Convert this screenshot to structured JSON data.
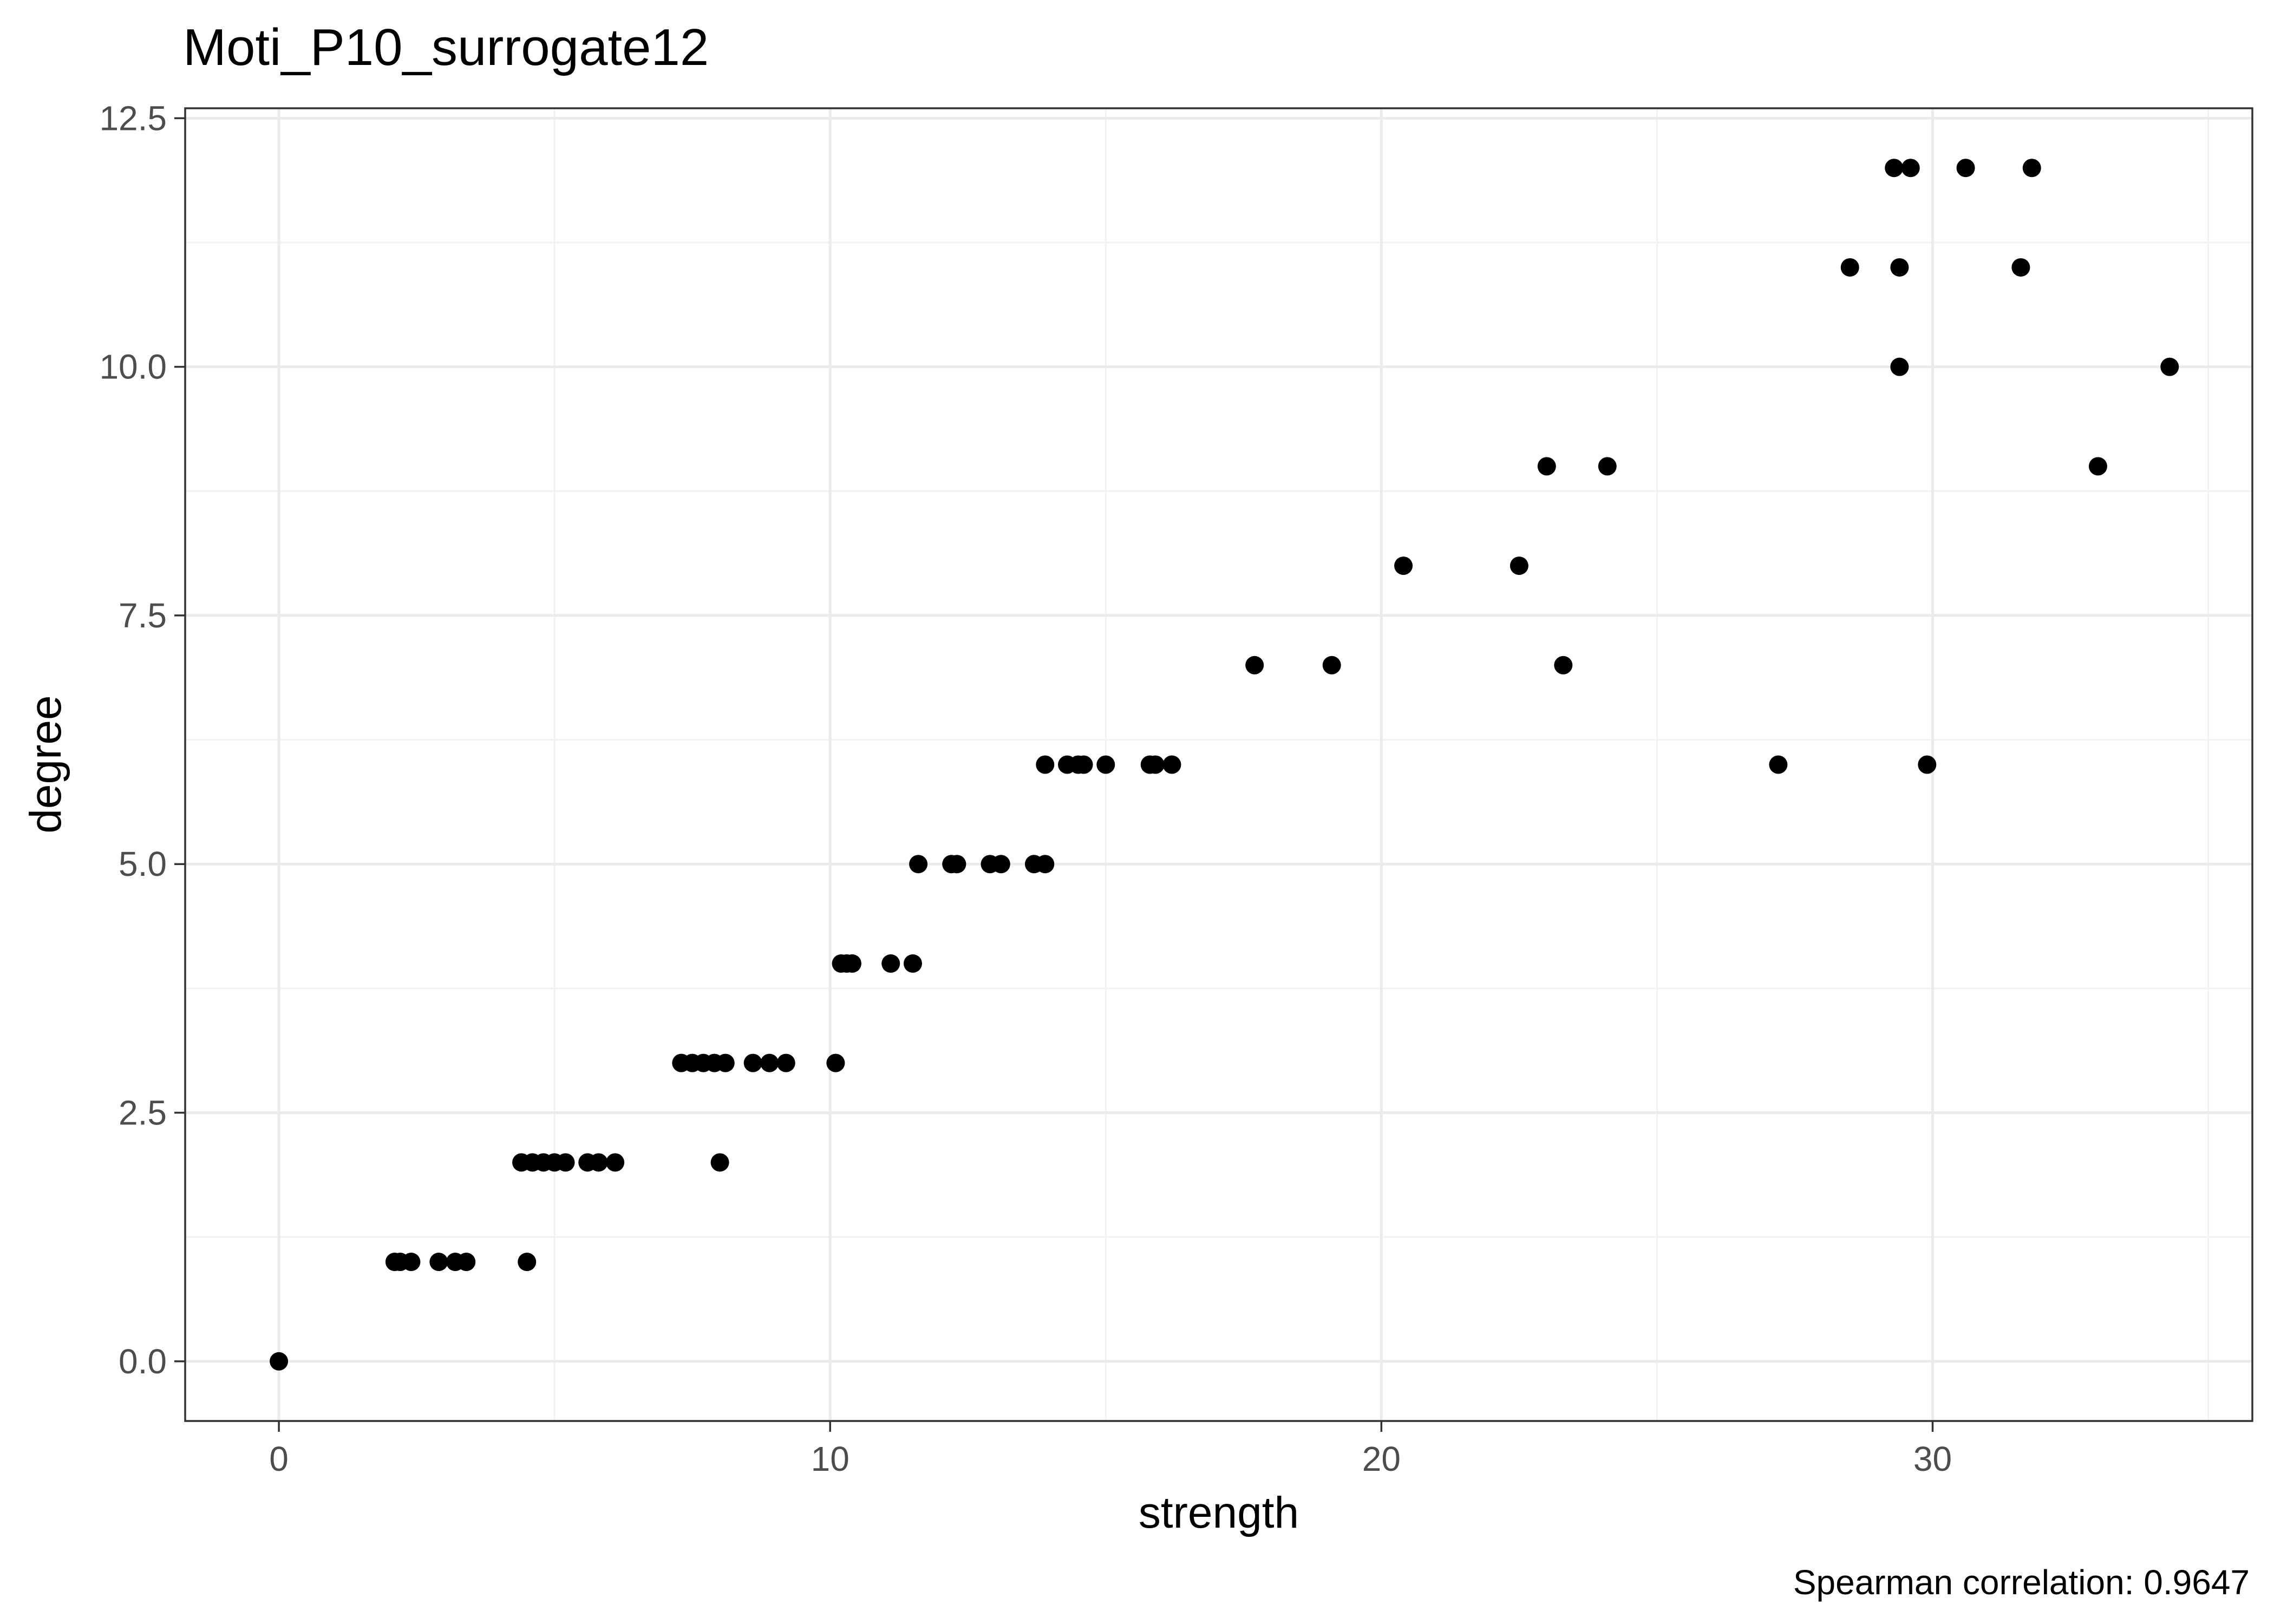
{
  "chart_data": {
    "type": "scatter",
    "title": "Moti_P10_surrogate12",
    "xlabel": "strength",
    "ylabel": "degree",
    "caption": "Spearman correlation: 0.9647",
    "xlim": [
      -1.7,
      35.8
    ],
    "ylim": [
      -0.6,
      12.6
    ],
    "x_ticks": [
      0,
      10,
      20,
      30
    ],
    "x_tick_labels": [
      "0",
      "10",
      "20",
      "30"
    ],
    "y_ticks": [
      0,
      2.5,
      5,
      7.5,
      10,
      12.5
    ],
    "y_tick_labels": [
      "0.0",
      "2.5",
      "5.0",
      "7.5",
      "10.0",
      "12.5"
    ],
    "grid": true,
    "theme": "bw",
    "point_color": "#000000",
    "points": [
      {
        "x": 0.0,
        "y": 0
      },
      {
        "x": 2.1,
        "y": 1
      },
      {
        "x": 2.2,
        "y": 1
      },
      {
        "x": 2.4,
        "y": 1
      },
      {
        "x": 2.9,
        "y": 1
      },
      {
        "x": 3.2,
        "y": 1
      },
      {
        "x": 3.4,
        "y": 1
      },
      {
        "x": 4.5,
        "y": 1
      },
      {
        "x": 4.4,
        "y": 2
      },
      {
        "x": 4.6,
        "y": 2
      },
      {
        "x": 4.8,
        "y": 2
      },
      {
        "x": 5.0,
        "y": 2
      },
      {
        "x": 5.2,
        "y": 2
      },
      {
        "x": 5.6,
        "y": 2
      },
      {
        "x": 5.8,
        "y": 2
      },
      {
        "x": 6.1,
        "y": 2
      },
      {
        "x": 8.0,
        "y": 2
      },
      {
        "x": 7.3,
        "y": 3
      },
      {
        "x": 7.5,
        "y": 3
      },
      {
        "x": 7.7,
        "y": 3
      },
      {
        "x": 7.9,
        "y": 3
      },
      {
        "x": 8.1,
        "y": 3
      },
      {
        "x": 8.6,
        "y": 3
      },
      {
        "x": 8.9,
        "y": 3
      },
      {
        "x": 9.2,
        "y": 3
      },
      {
        "x": 10.1,
        "y": 3
      },
      {
        "x": 10.2,
        "y": 4
      },
      {
        "x": 10.3,
        "y": 4
      },
      {
        "x": 10.4,
        "y": 4
      },
      {
        "x": 11.1,
        "y": 4
      },
      {
        "x": 11.5,
        "y": 4
      },
      {
        "x": 11.6,
        "y": 5
      },
      {
        "x": 12.2,
        "y": 5
      },
      {
        "x": 12.3,
        "y": 5
      },
      {
        "x": 12.9,
        "y": 5
      },
      {
        "x": 13.1,
        "y": 5
      },
      {
        "x": 13.7,
        "y": 5
      },
      {
        "x": 13.9,
        "y": 5
      },
      {
        "x": 13.9,
        "y": 6
      },
      {
        "x": 14.3,
        "y": 6
      },
      {
        "x": 14.5,
        "y": 6
      },
      {
        "x": 14.6,
        "y": 6
      },
      {
        "x": 15.0,
        "y": 6
      },
      {
        "x": 15.8,
        "y": 6
      },
      {
        "x": 15.9,
        "y": 6
      },
      {
        "x": 16.2,
        "y": 6
      },
      {
        "x": 17.7,
        "y": 7
      },
      {
        "x": 19.1,
        "y": 7
      },
      {
        "x": 20.4,
        "y": 8
      },
      {
        "x": 22.5,
        "y": 8
      },
      {
        "x": 23.3,
        "y": 7
      },
      {
        "x": 23.0,
        "y": 9
      },
      {
        "x": 24.1,
        "y": 9
      },
      {
        "x": 27.2,
        "y": 6
      },
      {
        "x": 29.9,
        "y": 6
      },
      {
        "x": 28.5,
        "y": 11
      },
      {
        "x": 29.4,
        "y": 11
      },
      {
        "x": 31.6,
        "y": 11
      },
      {
        "x": 29.3,
        "y": 12
      },
      {
        "x": 29.6,
        "y": 12
      },
      {
        "x": 30.6,
        "y": 12
      },
      {
        "x": 31.8,
        "y": 12
      },
      {
        "x": 29.4,
        "y": 10
      },
      {
        "x": 34.3,
        "y": 10
      },
      {
        "x": 33.0,
        "y": 9
      }
    ]
  }
}
